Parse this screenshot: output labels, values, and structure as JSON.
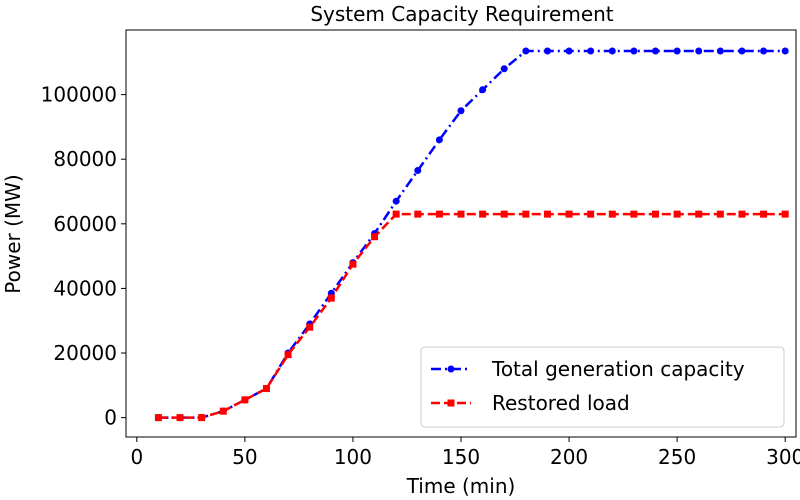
{
  "chart_data": {
    "type": "line",
    "title": "System Capacity Requirement",
    "xlabel": "Time (min)",
    "ylabel": "Power (MW)",
    "xlim": [
      -5,
      305
    ],
    "ylim": [
      -6000,
      120000
    ],
    "xticks": [
      0,
      50,
      100,
      150,
      200,
      250,
      300
    ],
    "yticks": [
      0,
      20000,
      40000,
      60000,
      80000,
      100000
    ],
    "grid": false,
    "legend_position": "lower-right",
    "series": [
      {
        "name": "Total generation capacity",
        "color": "#0000ff",
        "marker": "circle",
        "linestyle": "dash-dot",
        "x": [
          10,
          20,
          30,
          40,
          50,
          60,
          70,
          80,
          90,
          100,
          110,
          120,
          130,
          140,
          150,
          160,
          170,
          180,
          190,
          200,
          210,
          220,
          230,
          240,
          250,
          260,
          270,
          280,
          290,
          300
        ],
        "y": [
          0,
          0,
          0,
          2000,
          5500,
          9000,
          20000,
          29000,
          38500,
          48000,
          57000,
          67000,
          76500,
          86000,
          95000,
          101500,
          108000,
          113500,
          113500,
          113500,
          113500,
          113500,
          113500,
          113500,
          113500,
          113500,
          113500,
          113500,
          113500,
          113500
        ]
      },
      {
        "name": "Restored load",
        "color": "#ff0000",
        "marker": "square",
        "linestyle": "dashed",
        "x": [
          10,
          20,
          30,
          40,
          50,
          60,
          70,
          80,
          90,
          100,
          110,
          120,
          130,
          140,
          150,
          160,
          170,
          180,
          190,
          200,
          210,
          220,
          230,
          240,
          250,
          260,
          270,
          280,
          290,
          300
        ],
        "y": [
          0,
          0,
          0,
          2000,
          5500,
          9000,
          19500,
          28000,
          37000,
          47500,
          56000,
          63000,
          63000,
          63000,
          63000,
          63000,
          63000,
          63000,
          63000,
          63000,
          63000,
          63000,
          63000,
          63000,
          63000,
          63000,
          63000,
          63000,
          63000,
          63000
        ]
      }
    ]
  }
}
